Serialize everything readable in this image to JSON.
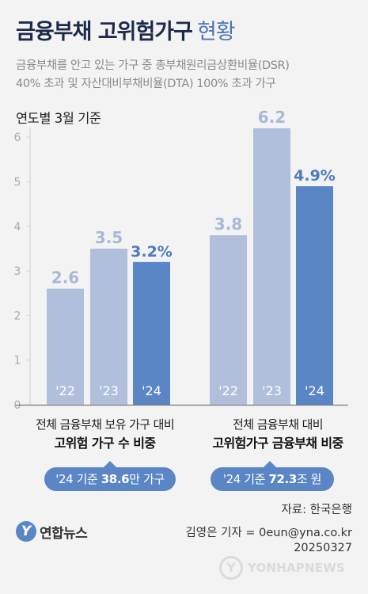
{
  "header": {
    "title_bold": "금융부채 고위험가구",
    "title_light": "현황",
    "subtitle_line1": "금융부채를 안고 있는 가구 중 총부채원리금상환비율(DSR)",
    "subtitle_line2": "40% 초과 및 자산대비부채비율(DTA) 100% 초과 가구",
    "basis": "연도별 3월 기준"
  },
  "colors": {
    "bar_light": "#b0bfdb",
    "bar_dark": "#5a86c6",
    "value_light": "#a8b9d8",
    "value_dark": "#4f7bc0",
    "accent": "#5a86c6"
  },
  "chart_data": [
    {
      "type": "bar",
      "categories": [
        "'22",
        "'23",
        "'24"
      ],
      "values": [
        2.6,
        3.5,
        3.2
      ],
      "value_labels": [
        "2.6",
        "3.5",
        "3.2%"
      ],
      "caption_line1": "전체 금융부채 보유 가구 대비",
      "caption_line2": "고위험 가구 수 비중",
      "ylim": [
        0,
        6.5
      ],
      "yticks": [
        0,
        1,
        2,
        3,
        4,
        5,
        6
      ],
      "grid": false
    },
    {
      "type": "bar",
      "categories": [
        "'22",
        "'23",
        "'24"
      ],
      "values": [
        3.8,
        6.2,
        4.9
      ],
      "value_labels": [
        "3.8",
        "6.2",
        "4.9%"
      ],
      "caption_line1": "전체 금융부채 대비",
      "caption_line2": "고위험가구 금융부채 비중",
      "ylim": [
        0,
        6.5
      ],
      "yticks": [
        0,
        1,
        2,
        3,
        4,
        5,
        6
      ],
      "grid": false
    }
  ],
  "notes": {
    "pill1_pre": "'24 기준 ",
    "pill1_num": "38.6",
    "pill1_post": "만 가구",
    "pill2_pre": "'24 기준 ",
    "pill2_num": "72.3",
    "pill2_post": "조 원"
  },
  "footer": {
    "source": "자료: 한국은행",
    "reporter": "김영은 기자 = 0eun@yna.co.kr",
    "date": "20250327",
    "logo_text": "연합뉴스",
    "watermark_text": "YONHAPNEWS"
  },
  "icons": {
    "logo": "yonhap-logo-icon",
    "watermark": "yonhap-watermark-icon"
  }
}
